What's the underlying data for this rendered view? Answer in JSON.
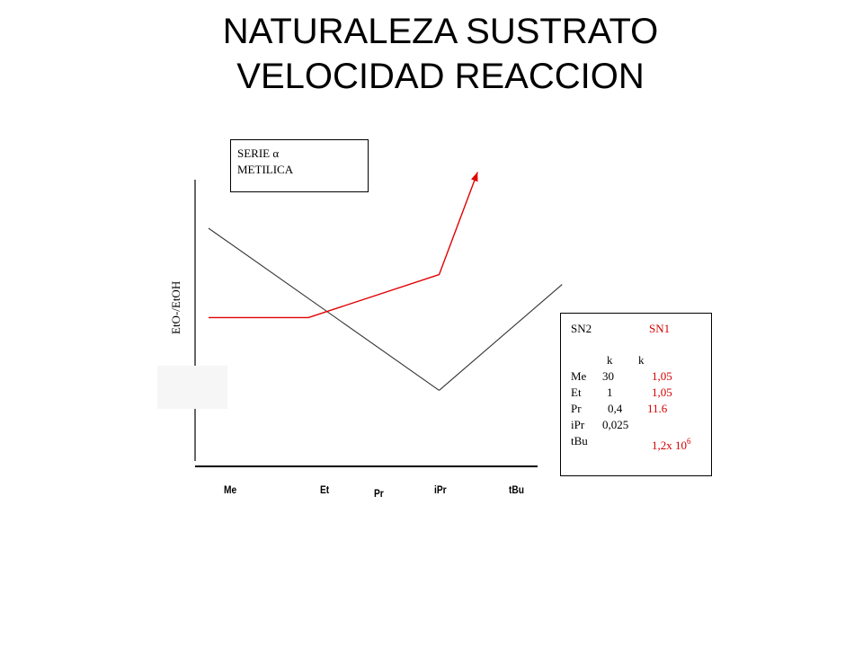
{
  "title": {
    "line1": "NATURALEZA SUSTRATO",
    "line2": "VELOCIDAD REACCION"
  },
  "colors": {
    "sn2_line": "#333333",
    "sn1_line": "#e00000",
    "table_sn1_text": "#d40000"
  },
  "chart_data": {
    "type": "line",
    "ylabel": "EtO-/EtOH",
    "categories": [
      "Me",
      "Et",
      "Pr",
      "iPr",
      "tBu"
    ],
    "series": [
      {
        "name": "SN2",
        "x": [
          0,
          3
        ],
        "y": [
          7.2,
          2.3
        ]
      },
      {
        "name": "SN2",
        "x": [
          3,
          4.6
        ],
        "y": [
          2.3,
          5.5
        ]
      },
      {
        "name": "SN1",
        "x": [
          0,
          1.3,
          3,
          3.5
        ],
        "y": [
          4.5,
          4.5,
          5.8,
          8.9
        ]
      }
    ],
    "arrow_end_series": "SN1",
    "legend_box": {
      "line1_text": "SERIE",
      "line1_symbol": "α",
      "line2": "METILICA"
    },
    "table": {
      "header_sn2": "SN2",
      "header_sn1": "SN1",
      "k_sn2": "k",
      "k_sn1": "k",
      "rows": [
        {
          "sub": "Me",
          "sn2": "30",
          "sn1": "1,05"
        },
        {
          "sub": "Et",
          "sn2": "1",
          "sn1": "1,05"
        },
        {
          "sub": "Pr",
          "sn2": "0,4",
          "sn1": "11.6"
        },
        {
          "sub": "iPr",
          "sn2": "0,025",
          "sn1": ""
        },
        {
          "sub": "tBu",
          "sn2": "",
          "sn1": "1,2x 10",
          "sn1_exp": "6"
        }
      ]
    }
  }
}
